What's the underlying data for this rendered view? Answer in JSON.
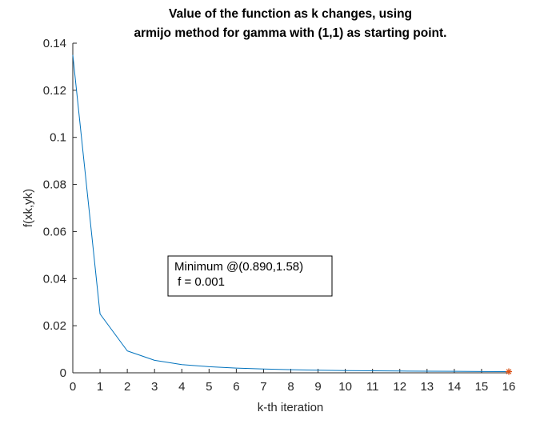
{
  "chart_data": {
    "type": "line",
    "title": [
      "Value of the function as k changes, using",
      "armijo method for gamma with (1,1) as starting point."
    ],
    "xlabel": "k-th iteration",
    "ylabel": "f(xk,yk)",
    "xlim": [
      0,
      16
    ],
    "ylim": [
      0,
      0.14
    ],
    "xticks": [
      0,
      1,
      2,
      3,
      4,
      5,
      6,
      7,
      8,
      9,
      10,
      11,
      12,
      13,
      14,
      15,
      16
    ],
    "yticks": [
      0,
      0.02,
      0.04,
      0.06,
      0.08,
      0.1,
      0.12,
      0.14
    ],
    "ytick_labels": [
      "0",
      "0.02",
      "0.04",
      "0.06",
      "0.08",
      "0.1",
      "0.12",
      "0.14"
    ],
    "grid": false,
    "series": [
      {
        "color": "#0072BD",
        "x": [
          0,
          1,
          2,
          3,
          4,
          5,
          6,
          7,
          8,
          9,
          10,
          11,
          12,
          13,
          14,
          15,
          16
        ],
        "y": [
          0.135,
          0.025,
          0.0093,
          0.0053,
          0.0035,
          0.0026,
          0.002,
          0.0016,
          0.0013,
          0.0011,
          0.00095,
          0.00085,
          0.00075,
          0.00068,
          0.00062,
          0.00057,
          0.0005
        ]
      }
    ],
    "minimum_marker": {
      "x": 16,
      "y": 0.0005,
      "symbol": "asterisk",
      "color": "#D95319"
    },
    "annotation": {
      "lines": [
        "Minimum @(0.890,1.58)",
        " f = 0.001"
      ]
    }
  }
}
